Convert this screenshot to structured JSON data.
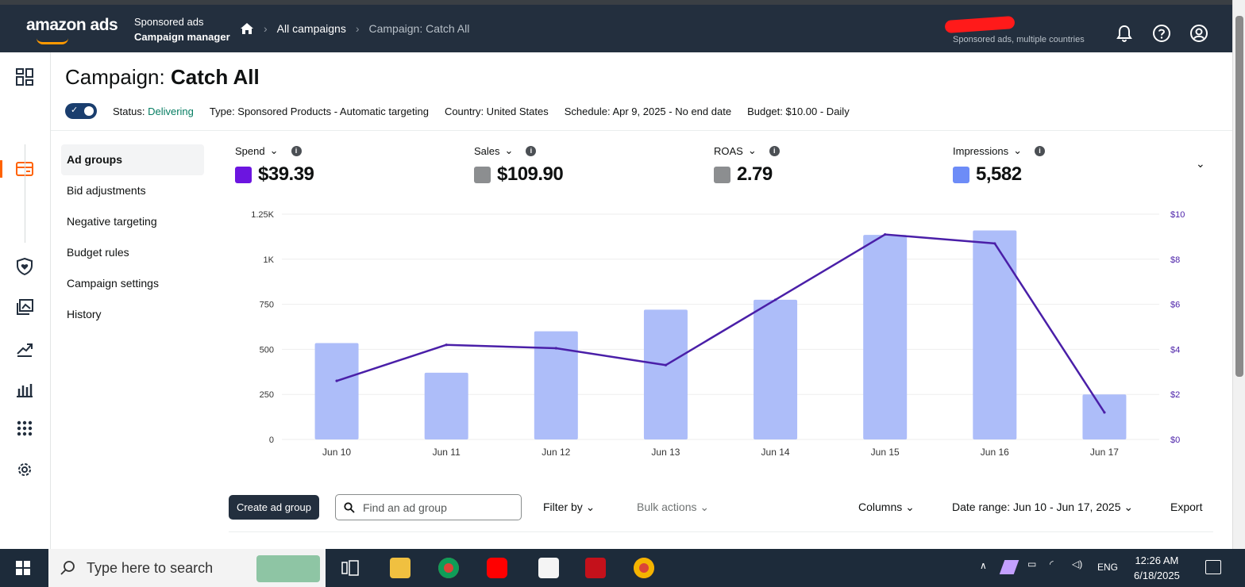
{
  "header": {
    "brand": "amazon ads",
    "product_line1": "Sponsored ads",
    "product_line2": "Campaign manager",
    "breadcrumbs": [
      "All campaigns",
      "Campaign: Catch All"
    ],
    "account_subtitle": "Sponsored ads, multiple countries"
  },
  "campaign": {
    "title_prefix": "Campaign: ",
    "title_name": "Catch All",
    "status_label": "Status: ",
    "status_value": "Delivering",
    "type": "Type: Sponsored Products - Automatic targeting",
    "country": "Country: United States",
    "schedule": "Schedule: Apr 9, 2025 - No end date",
    "budget": "Budget: $10.00 - Daily"
  },
  "subnav": [
    "Ad groups",
    "Bid adjustments",
    "Negative targeting",
    "Budget rules",
    "Campaign settings",
    "History"
  ],
  "metrics": [
    {
      "label": "Spend",
      "value": "$39.39",
      "color": "#6c15e0"
    },
    {
      "label": "Sales",
      "value": "$109.90",
      "color": "#8c8e90"
    },
    {
      "label": "ROAS",
      "value": "2.79",
      "color": "#8c8e90"
    },
    {
      "label": "Impressions",
      "value": "5,582",
      "color": "#6d8cf7"
    }
  ],
  "chart_data": {
    "type": "bar",
    "categories": [
      "Jun 10",
      "Jun 11",
      "Jun 12",
      "Jun 13",
      "Jun 14",
      "Jun 15",
      "Jun 16",
      "Jun 17"
    ],
    "series": [
      {
        "values": [
          535,
          370,
          600,
          720,
          775,
          1135,
          1160,
          250
        ],
        "axis": "left",
        "render": "bar",
        "color": "#adbdf9"
      },
      {
        "values": [
          2.6,
          4.2,
          4.05,
          3.3,
          6.2,
          9.1,
          8.7,
          1.2
        ],
        "axis": "right",
        "render": "line",
        "color": "#4a1fa8"
      }
    ],
    "ylim_left": [
      0,
      1250
    ],
    "ylim_right": [
      0,
      10
    ],
    "yticks_left": [
      "0",
      "250",
      "500",
      "750",
      "1K",
      "1.25K"
    ],
    "yticks_right": [
      "$0",
      "$2",
      "$4",
      "$6",
      "$8",
      "$10"
    ],
    "grid": true
  },
  "toolbar": {
    "create_label": "Create ad group",
    "search_placeholder": "Find an ad group",
    "filter_label": "Filter by",
    "bulk_label": "Bulk actions",
    "columns_label": "Columns",
    "date_range_label": "Date range: Jun 10 - Jun 17, 2025",
    "export_label": "Export"
  },
  "taskbar": {
    "search_placeholder": "Type here to search",
    "lang": "ENG",
    "time": "12:26 AM",
    "date": "6/18/2025"
  }
}
